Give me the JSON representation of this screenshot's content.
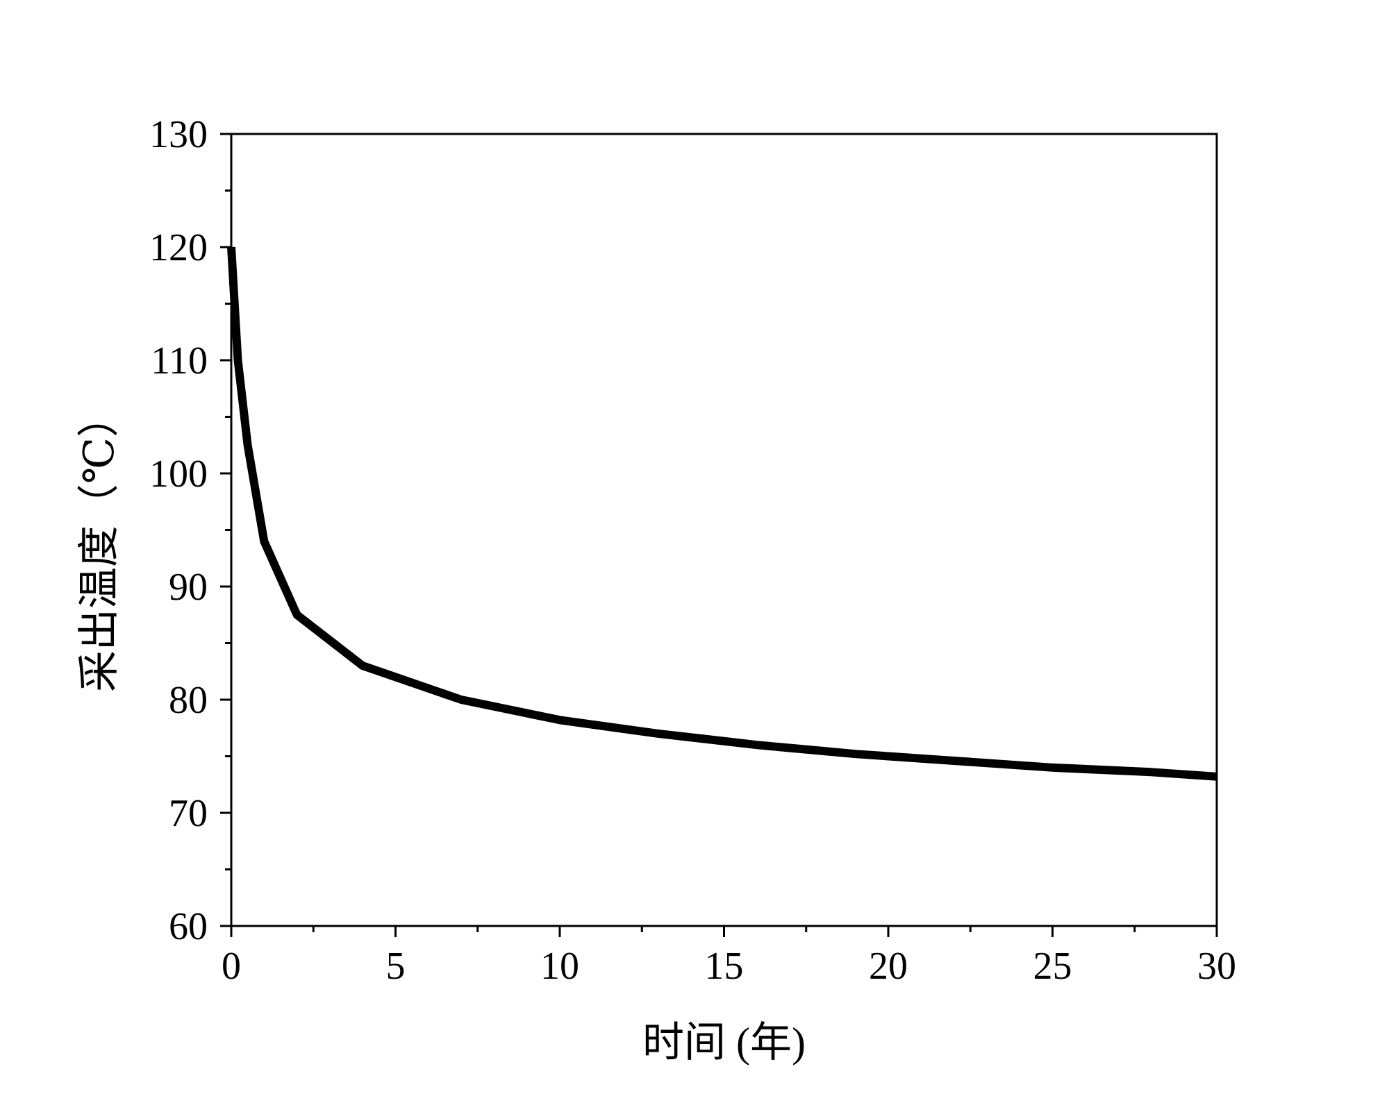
{
  "chart_data": {
    "type": "line",
    "title": "",
    "xlabel": "时间 (年)",
    "ylabel": "采出温度（℃）",
    "xlim": [
      0,
      30
    ],
    "ylim": [
      60,
      130
    ],
    "xticks": [
      0,
      5,
      10,
      15,
      20,
      25,
      30
    ],
    "xtick_labels": [
      "0",
      "5",
      "10",
      "15",
      "20",
      "25",
      "30"
    ],
    "yticks": [
      60,
      70,
      80,
      90,
      100,
      110,
      120,
      130
    ],
    "ytick_labels": [
      "60",
      "70",
      "80",
      "90",
      "100",
      "110",
      "120",
      "130"
    ],
    "x_minor_step": 2.5,
    "y_minor_step": 5,
    "grid": false,
    "legend": "none",
    "series": [
      {
        "color": "#000000",
        "x": [
          0,
          0.2,
          0.5,
          1,
          2,
          4,
          7,
          10,
          13,
          16,
          19,
          22,
          25,
          28,
          30
        ],
        "y": [
          120,
          110,
          102.5,
          94,
          87.5,
          83,
          80,
          78.2,
          77,
          76,
          75.2,
          74.6,
          74,
          73.6,
          73.2
        ]
      }
    ]
  }
}
